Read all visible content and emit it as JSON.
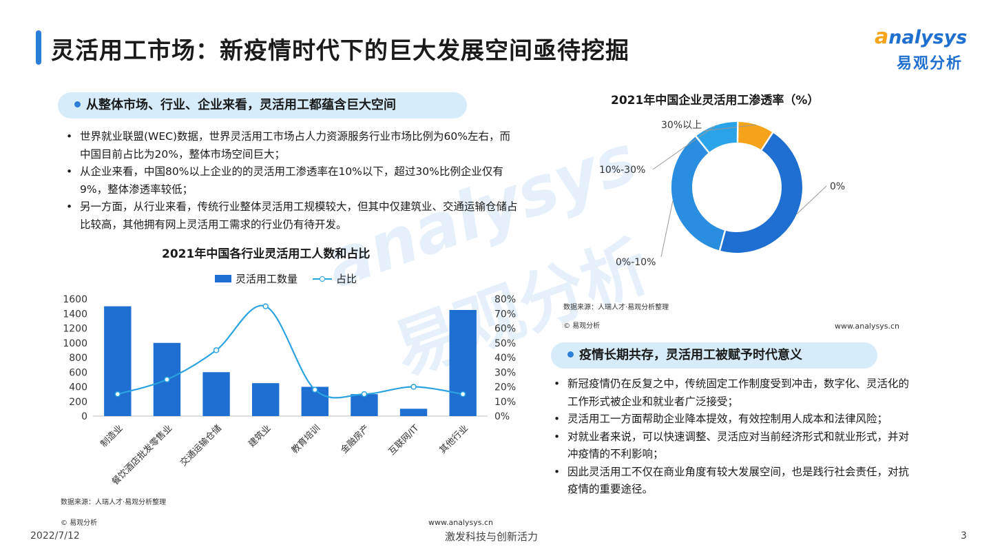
{
  "header": {
    "title": "灵活用工市场：新疫情时代下的巨大发展空间亟待挖掘",
    "logo_en_first": "a",
    "logo_en_rest": "nalysys",
    "logo_cn": "易观分析"
  },
  "section1": {
    "heading": "从整体市场、行业、企业来看，灵活用工都蕴含巨大空间",
    "bullets": [
      "世界就业联盟(WEC)数据，世界灵活用工市场占人力资源服务行业市场比例为60%左右，而中国目前占比为20%，整体市场空间巨大；",
      "从企业来看，中国80%以上企业的的灵活用工渗透率在10%以下，超过30%比例企业仅有9%，整体渗透率较低；",
      "另一方面，从行业来看，传统行业整体灵活用工规模较大，但其中仅建筑业、交通运输仓储占比较高，其他拥有网上灵活用工需求的行业仍有待开发。"
    ]
  },
  "section2": {
    "heading": "疫情长期共存，灵活用工被赋予时代意义",
    "bullets": [
      "新冠疫情仍在反复之中，传统固定工作制度受到冲击，数字化、灵活化的工作形式被企业和就业者广泛接受；",
      "灵活用工一方面帮助企业降本提效，有效控制用人成本和法律风险；",
      "对就业者来说，可以快速调整、灵活应对当前经济形式和就业形式，并对冲疫情的不利影响；",
      "因此灵活用工不仅在商业角度有较大发展空间，也是践行社会责任，对抗疫情的重要途径。"
    ]
  },
  "chart_data": [
    {
      "type": "bar",
      "title": "2021年中国各行业灵活用工人数和占比",
      "categories": [
        "制造业",
        "餐饮酒店批发零售业",
        "交通运输仓储",
        "建筑业",
        "教育培训",
        "金融房产",
        "互联网/IT",
        "其他行业"
      ],
      "series": [
        {
          "name": "灵活用工数量",
          "kind": "bar",
          "axis": "left",
          "color": "#1f6fd2",
          "values": [
            1500,
            1000,
            600,
            450,
            400,
            300,
            100,
            1450
          ]
        },
        {
          "name": "占比",
          "kind": "line",
          "axis": "right",
          "color": "#2aa3e0",
          "values": [
            15,
            25,
            45,
            75,
            18,
            15,
            20,
            15
          ]
        }
      ],
      "ylim_left": [
        0,
        1600
      ],
      "yticks_left": [
        "0",
        "200",
        "400",
        "600",
        "800",
        "1000",
        "1200",
        "1400",
        "1600"
      ],
      "ylim_right": [
        0,
        80
      ],
      "yticks_right": [
        "0%",
        "10%",
        "20%",
        "30%",
        "40%",
        "50%",
        "60%",
        "70%",
        "80%"
      ],
      "legend_position": "top-center",
      "grid": false,
      "source": "数据来源：人瑞人才·易观分析整理",
      "copyright": "© 易观分析",
      "website": "www.analysys.cn"
    },
    {
      "type": "pie",
      "donut": true,
      "title": "2021年中国企业灵活用工渗透率（%）",
      "labels": [
        "0%",
        "0%-10%",
        "10%-30%",
        "30%以上"
      ],
      "values": [
        45,
        35,
        11,
        9
      ],
      "colors": [
        "#1f6fd2",
        "#2a8ee0",
        "#2aa3e8",
        "#f5a31a"
      ],
      "source": "数据来源：人瑞人才·易观分析整理",
      "copyright": "© 易观分析",
      "website": "www.analysys.cn"
    }
  ],
  "watermark": {
    "en": "analysys",
    "cn": "易观分析"
  },
  "footer": {
    "date": "2022/7/12",
    "slogan": "激发科技与创新活力",
    "page": "3"
  }
}
